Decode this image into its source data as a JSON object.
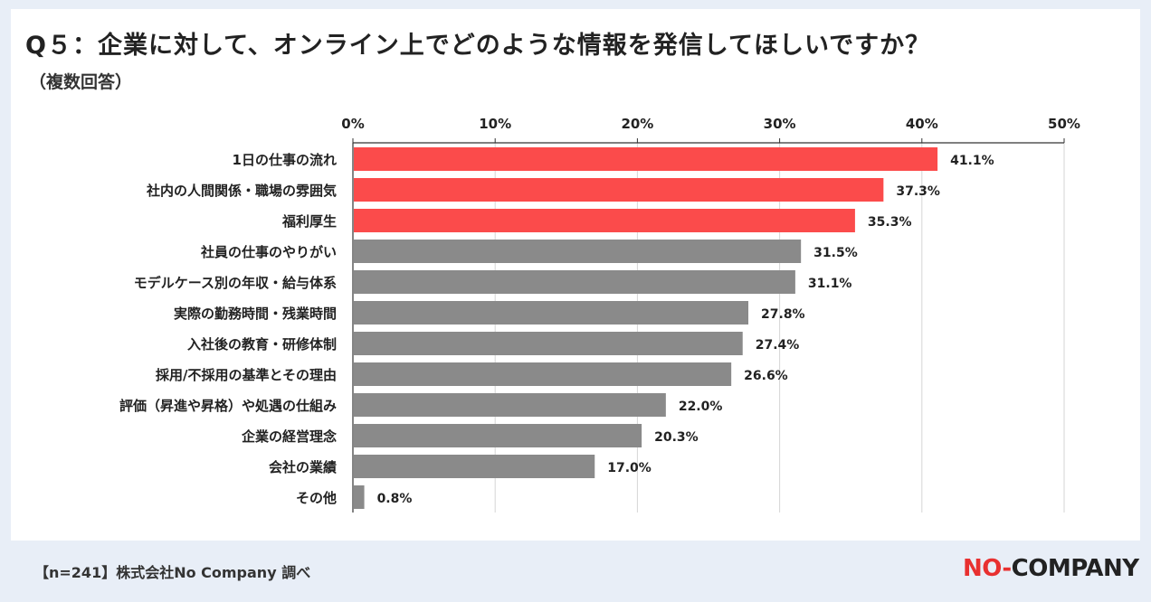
{
  "header": {
    "title": "Q５：企業に対して、オンライン上でどのような情報を発信してほしいですか？",
    "subtitle": "（複数回答）"
  },
  "footer": {
    "note": "【n=241】株式会社No Company 調べ",
    "logo": {
      "part1": "NO",
      "part2": "COMPANY",
      "dot": "-"
    }
  },
  "colors": {
    "highlight": "#fb4b4b",
    "normal": "#8a8a8a",
    "background": "#e8eef7"
  },
  "chart_data": {
    "type": "bar",
    "orientation": "horizontal",
    "title": "Q５：企業に対して、オンライン上でどのような情報を発信してほしいですか？",
    "subtitle": "（複数回答）",
    "categories": [
      "1日の仕事の流れ",
      "社内の人間関係・職場の雰囲気",
      "福利厚生",
      "社員の仕事のやりがい",
      "モデルケース別の年収・給与体系",
      "実際の勤務時間・残業時間",
      "入社後の教育・研修体制",
      "採用/不採用の基準とその理由",
      "評価（昇進や昇格）や処遇の仕組み",
      "企業の経営理念",
      "会社の業績",
      "その他"
    ],
    "values": [
      41.1,
      37.3,
      35.3,
      31.5,
      31.1,
      27.8,
      27.4,
      26.6,
      22.0,
      20.3,
      17.0,
      0.8
    ],
    "value_labels": [
      "41.1%",
      "37.3%",
      "35.3%",
      "31.5%",
      "31.1%",
      "27.8%",
      "27.4%",
      "26.6%",
      "22.0%",
      "20.3%",
      "17.0%",
      "0.8%"
    ],
    "highlighted": [
      true,
      true,
      true,
      false,
      false,
      false,
      false,
      false,
      false,
      false,
      false,
      false
    ],
    "xlim": [
      0,
      50
    ],
    "ticks": [
      0,
      10,
      20,
      30,
      40,
      50
    ],
    "tick_labels": [
      "0%",
      "10%",
      "20%",
      "30%",
      "40%",
      "50%"
    ],
    "grid": true,
    "xlabel": "",
    "ylabel": ""
  }
}
